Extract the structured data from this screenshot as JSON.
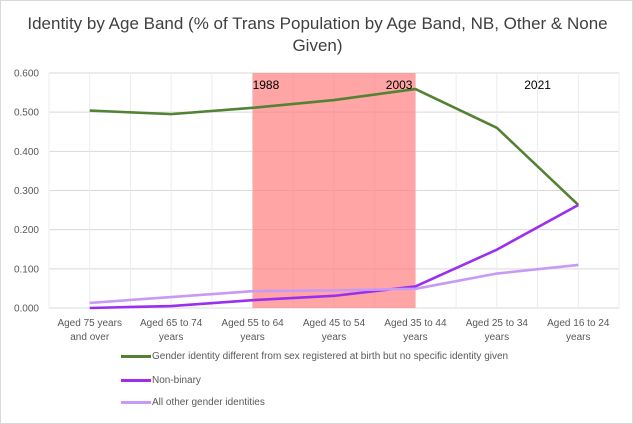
{
  "chart_data": {
    "type": "line",
    "title": "Identity by Age Band (% of Trans Population by Age Band, NB, Other & None Given)",
    "categories": [
      "Aged 75 years and over",
      "Aged 65 to 74 years",
      "Aged 55 to 64 years",
      "Aged 45 to 54 years",
      "Aged 35 to 44 years",
      "Aged 25 to 34 years",
      "Aged 16 to 24 years"
    ],
    "ylim": [
      0,
      0.6
    ],
    "yticks": [
      "0.000",
      "0.100",
      "0.200",
      "0.300",
      "0.400",
      "0.500",
      "0.600"
    ],
    "grid": true,
    "legend": "bottom",
    "series": [
      {
        "name": "Gender identity different from sex registered at birth but no specific identity given",
        "color": "#548235",
        "values": [
          0.504,
          0.495,
          0.511,
          0.531,
          0.559,
          0.46,
          0.263
        ]
      },
      {
        "name": "Non-binary",
        "color": "#9b2ff0",
        "values": [
          0.0,
          0.005,
          0.02,
          0.031,
          0.055,
          0.149,
          0.263
        ]
      },
      {
        "name": "All other gender identities",
        "color": "#c89af5",
        "values": [
          0.013,
          0.028,
          0.043,
          0.045,
          0.049,
          0.088,
          0.11
        ]
      }
    ],
    "shaded_region": {
      "from_category_index": 2.5,
      "to_category_index": 4.5,
      "color": "#ff7f7f"
    },
    "annotations": [
      {
        "text": "1988",
        "at_category_index": 2.5
      },
      {
        "text": "2003",
        "at_category_index": 4.3
      },
      {
        "text": "2021",
        "at_category_index": 6
      }
    ]
  }
}
